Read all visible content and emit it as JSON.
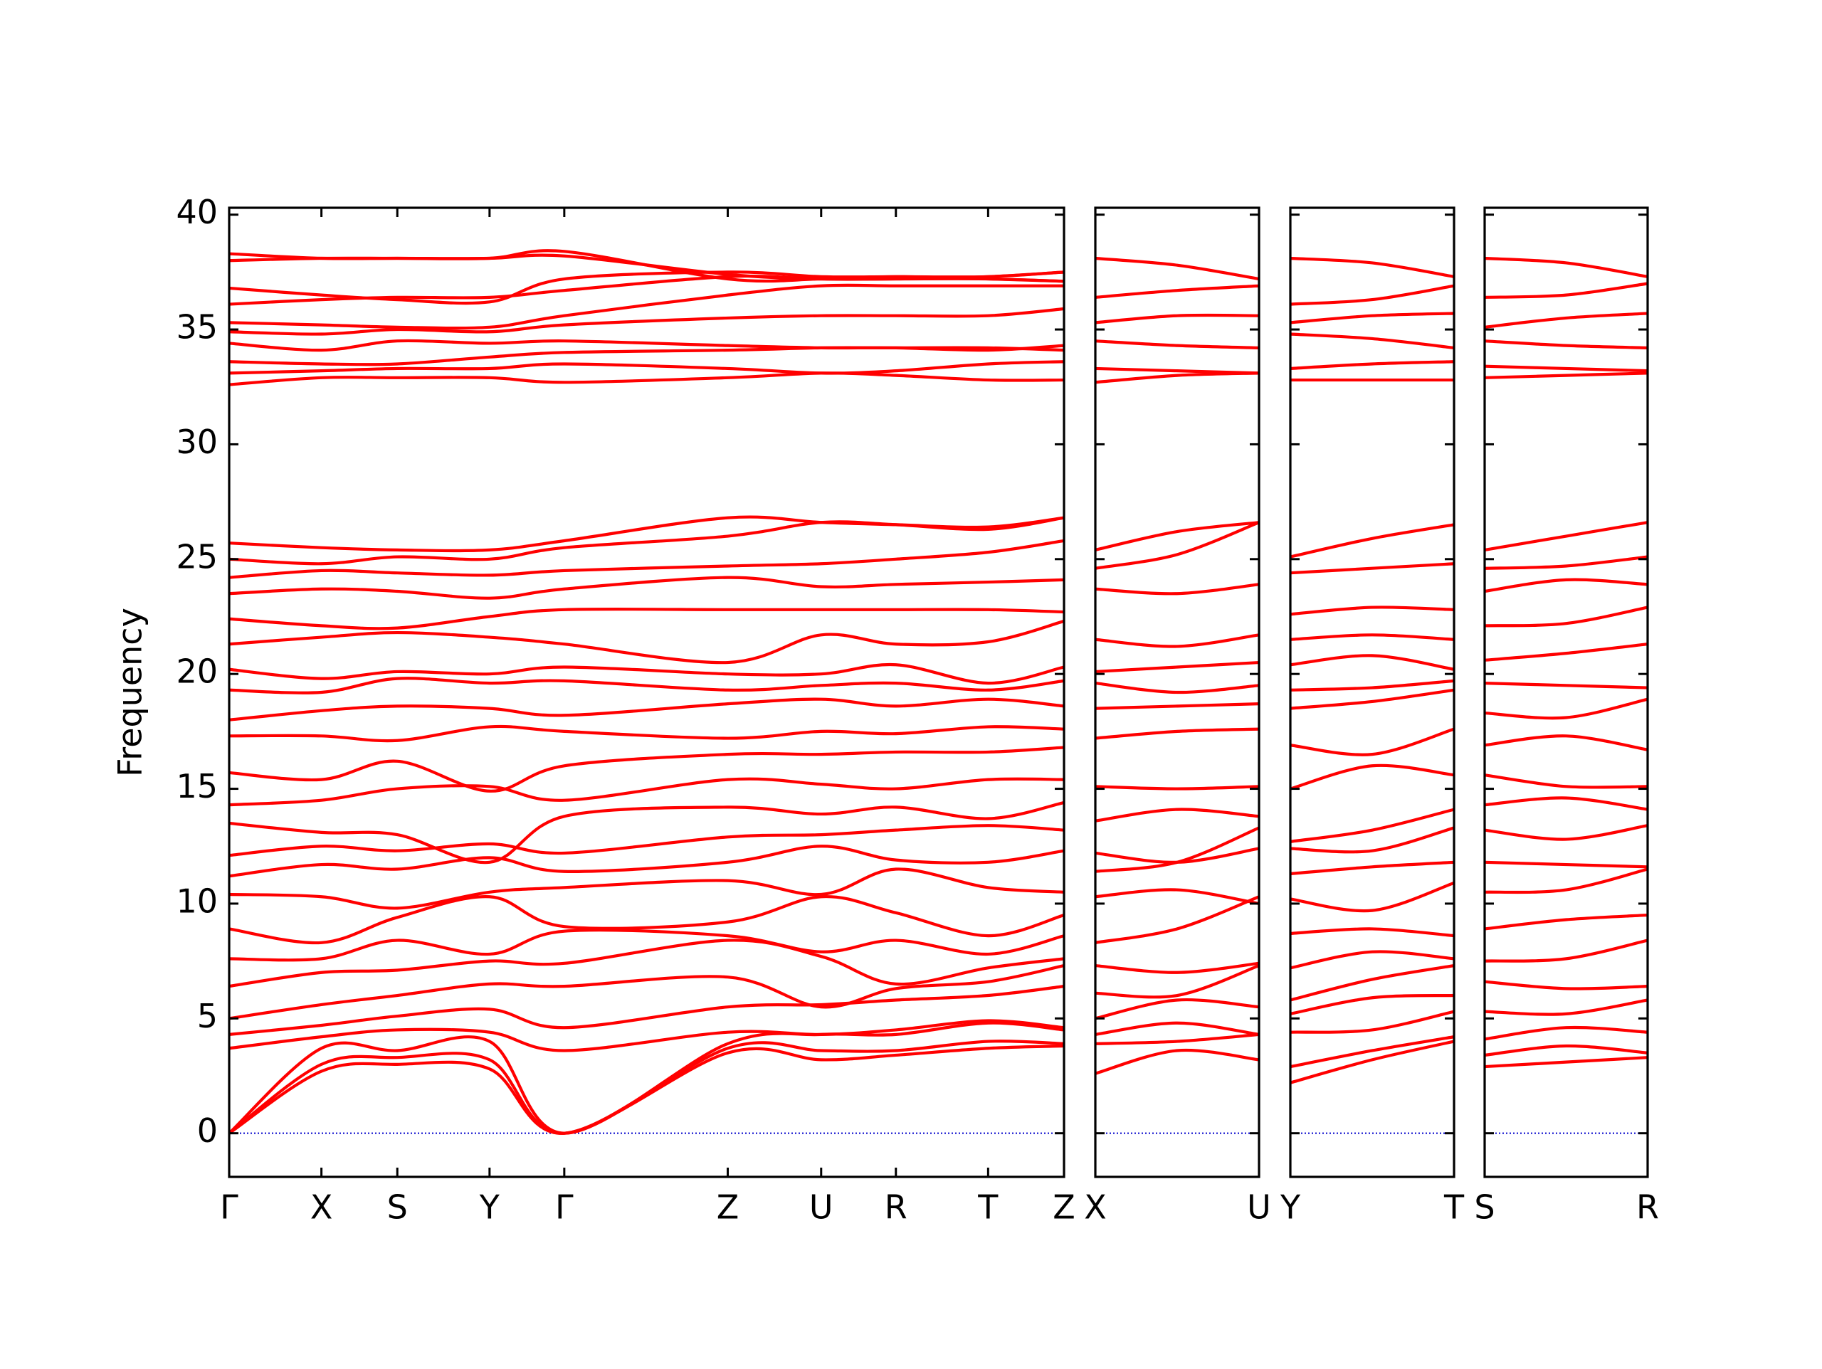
{
  "chart_data": [
    {
      "type": "line",
      "color": "#ff0000",
      "ylabel": "Frequency",
      "show_ytick_labels": true,
      "hline": {
        "value": 0,
        "color": "#0000cc"
      },
      "x": [
        0,
        0.79,
        1.44,
        2.23,
        2.87,
        4.27,
        5.07,
        5.71,
        6.5,
        7.15
      ],
      "xlim": [
        0,
        7.15
      ],
      "xticks": [
        {
          "value": 0,
          "label": "Γ"
        },
        {
          "value": 0.79,
          "label": "X"
        },
        {
          "value": 1.44,
          "label": "S"
        },
        {
          "value": 2.23,
          "label": "Y"
        },
        {
          "value": 2.87,
          "label": "Γ"
        },
        {
          "value": 4.27,
          "label": "Z"
        },
        {
          "value": 5.07,
          "label": "U"
        },
        {
          "value": 5.71,
          "label": "R"
        },
        {
          "value": 6.5,
          "label": "T"
        },
        {
          "value": 7.15,
          "label": "Z"
        }
      ],
      "ylim": [
        -1.9,
        40.3
      ],
      "yticks": [
        0,
        5,
        10,
        15,
        20,
        25,
        30,
        35,
        40
      ],
      "series": [
        {
          "values": [
            0,
            2.7,
            3.0,
            2.8,
            0,
            3.5,
            3.2,
            3.4,
            3.7,
            3.8
          ]
        },
        {
          "values": [
            0,
            3.0,
            3.3,
            3.2,
            0,
            3.7,
            3.6,
            3.6,
            4.0,
            3.9
          ]
        },
        {
          "values": [
            0,
            3.7,
            3.6,
            4.0,
            0,
            3.9,
            4.3,
            4.3,
            4.8,
            4.5
          ]
        },
        {
          "values": [
            3.7,
            4.2,
            4.5,
            4.4,
            3.6,
            4.4,
            4.3,
            4.5,
            4.9,
            4.6
          ]
        },
        {
          "values": [
            4.3,
            4.7,
            5.1,
            5.4,
            4.6,
            5.5,
            5.6,
            5.8,
            6.0,
            6.4
          ]
        },
        {
          "values": [
            5.0,
            5.6,
            6.0,
            6.5,
            6.4,
            6.8,
            5.5,
            6.3,
            6.6,
            7.3
          ]
        },
        {
          "values": [
            6.4,
            7.0,
            7.1,
            7.5,
            7.4,
            8.4,
            7.7,
            6.5,
            7.2,
            7.6
          ]
        },
        {
          "values": [
            7.6,
            7.6,
            8.4,
            7.8,
            8.8,
            8.6,
            7.9,
            8.4,
            7.8,
            8.6
          ]
        },
        {
          "values": [
            8.9,
            8.3,
            9.4,
            10.3,
            9.0,
            9.2,
            10.3,
            9.6,
            8.6,
            9.5
          ]
        },
        {
          "values": [
            10.4,
            10.3,
            9.8,
            10.5,
            10.7,
            11.0,
            10.4,
            11.5,
            10.7,
            10.5
          ]
        },
        {
          "values": [
            11.2,
            11.7,
            11.5,
            12.0,
            11.4,
            11.8,
            12.5,
            11.9,
            11.8,
            12.3
          ]
        },
        {
          "values": [
            12.1,
            12.5,
            12.3,
            12.6,
            12.2,
            12.9,
            13.0,
            13.2,
            13.4,
            13.2
          ]
        },
        {
          "values": [
            13.5,
            13.1,
            13.0,
            11.8,
            13.8,
            14.2,
            13.9,
            14.2,
            13.7,
            14.4
          ]
        },
        {
          "values": [
            14.3,
            14.5,
            15.0,
            15.1,
            14.5,
            15.4,
            15.2,
            15.0,
            15.4,
            15.4
          ]
        },
        {
          "values": [
            15.7,
            15.4,
            16.2,
            14.9,
            16.0,
            16.5,
            16.5,
            16.6,
            16.6,
            16.8
          ]
        },
        {
          "values": [
            17.3,
            17.3,
            17.1,
            17.7,
            17.5,
            17.2,
            17.5,
            17.4,
            17.7,
            17.6
          ]
        },
        {
          "values": [
            18.0,
            18.4,
            18.6,
            18.5,
            18.2,
            18.7,
            18.9,
            18.6,
            18.9,
            18.6
          ]
        },
        {
          "values": [
            19.3,
            19.2,
            19.8,
            19.6,
            19.7,
            19.3,
            19.5,
            19.6,
            19.3,
            19.7
          ]
        },
        {
          "values": [
            20.2,
            19.8,
            20.1,
            20.0,
            20.3,
            20.0,
            20.0,
            20.4,
            19.6,
            20.3
          ]
        },
        {
          "values": [
            21.3,
            21.6,
            21.8,
            21.6,
            21.3,
            20.5,
            21.7,
            21.3,
            21.4,
            22.3
          ]
        },
        {
          "values": [
            22.4,
            22.1,
            22.0,
            22.5,
            22.8,
            22.8,
            22.8,
            22.8,
            22.8,
            22.7
          ]
        },
        {
          "values": [
            23.5,
            23.7,
            23.6,
            23.3,
            23.7,
            24.2,
            23.8,
            23.9,
            24.0,
            24.1
          ]
        },
        {
          "values": [
            24.2,
            24.5,
            24.4,
            24.3,
            24.5,
            24.7,
            24.8,
            25.0,
            25.3,
            25.8
          ]
        },
        {
          "values": [
            25.0,
            24.8,
            25.1,
            25.0,
            25.5,
            26.0,
            26.6,
            26.5,
            26.3,
            26.8
          ]
        },
        {
          "values": [
            25.7,
            25.5,
            25.4,
            25.4,
            25.8,
            26.8,
            26.6,
            26.5,
            26.4,
            26.8
          ]
        },
        {
          "values": [
            32.6,
            32.9,
            32.9,
            32.9,
            32.7,
            32.9,
            33.1,
            33.0,
            32.8,
            32.8
          ]
        },
        {
          "values": [
            33.1,
            33.2,
            33.3,
            33.3,
            33.5,
            33.3,
            33.1,
            33.2,
            33.5,
            33.6
          ]
        },
        {
          "values": [
            33.6,
            33.5,
            33.5,
            33.8,
            34.0,
            34.1,
            34.2,
            34.2,
            34.2,
            34.1
          ]
        },
        {
          "values": [
            34.4,
            34.1,
            34.5,
            34.4,
            34.5,
            34.3,
            34.2,
            34.2,
            34.1,
            34.3
          ]
        },
        {
          "values": [
            34.9,
            34.8,
            35.0,
            34.9,
            35.2,
            35.5,
            35.6,
            35.6,
            35.6,
            35.9
          ]
        },
        {
          "values": [
            35.3,
            35.2,
            35.1,
            35.1,
            35.6,
            36.5,
            36.9,
            36.9,
            36.9,
            36.9
          ]
        },
        {
          "values": [
            36.1,
            36.3,
            36.4,
            36.4,
            36.7,
            37.3,
            37.2,
            37.2,
            37.3,
            37.5
          ]
        },
        {
          "values": [
            36.8,
            36.5,
            36.3,
            36.2,
            37.2,
            37.5,
            37.3,
            37.3,
            37.3,
            37.5
          ]
        },
        {
          "values": [
            38.0,
            38.1,
            38.1,
            38.1,
            38.2,
            37.4,
            37.2,
            37.2,
            37.2,
            37.1
          ]
        },
        {
          "values": [
            38.3,
            38.1,
            38.1,
            38.1,
            38.4,
            37.2,
            37.2,
            37.3,
            37.2,
            37.1
          ]
        }
      ]
    },
    {
      "type": "line",
      "color": "#ff0000",
      "show_ytick_labels": false,
      "hline": {
        "value": 0,
        "color": "#0000cc"
      },
      "x": [
        0,
        0.7,
        1.4
      ],
      "xlim": [
        0,
        1.4
      ],
      "xticks": [
        {
          "value": 0,
          "label": "X"
        },
        {
          "value": 1.4,
          "label": "U"
        }
      ],
      "ylim": [
        -1.9,
        40.3
      ],
      "yticks": [
        0,
        5,
        10,
        15,
        20,
        25,
        30,
        35,
        40
      ],
      "series": [
        {
          "values": [
            2.6,
            3.6,
            3.2
          ]
        },
        {
          "values": [
            3.9,
            4.0,
            4.3
          ]
        },
        {
          "values": [
            4.3,
            4.8,
            4.3
          ]
        },
        {
          "values": [
            5.0,
            5.8,
            5.5
          ]
        },
        {
          "values": [
            6.1,
            6.0,
            7.3
          ]
        },
        {
          "values": [
            7.3,
            7.0,
            7.4
          ]
        },
        {
          "values": [
            8.3,
            8.9,
            10.3
          ]
        },
        {
          "values": [
            10.3,
            10.6,
            10.0
          ]
        },
        {
          "values": [
            11.4,
            11.8,
            13.3
          ]
        },
        {
          "values": [
            12.2,
            11.8,
            12.4
          ]
        },
        {
          "values": [
            13.6,
            14.1,
            13.8
          ]
        },
        {
          "values": [
            15.1,
            15.0,
            15.1
          ]
        },
        {
          "values": [
            17.2,
            17.5,
            17.6
          ]
        },
        {
          "values": [
            18.5,
            18.6,
            18.7
          ]
        },
        {
          "values": [
            19.6,
            19.2,
            19.5
          ]
        },
        {
          "values": [
            20.1,
            20.3,
            20.5
          ]
        },
        {
          "values": [
            21.5,
            21.2,
            21.7
          ]
        },
        {
          "values": [
            23.7,
            23.5,
            23.9
          ]
        },
        {
          "values": [
            24.6,
            25.2,
            26.6
          ]
        },
        {
          "values": [
            25.4,
            26.2,
            26.6
          ]
        },
        {
          "values": [
            32.7,
            33.0,
            33.1
          ]
        },
        {
          "values": [
            33.3,
            33.2,
            33.1
          ]
        },
        {
          "values": [
            34.5,
            34.3,
            34.2
          ]
        },
        {
          "values": [
            35.3,
            35.6,
            35.6
          ]
        },
        {
          "values": [
            36.4,
            36.7,
            36.9
          ]
        },
        {
          "values": [
            38.1,
            37.8,
            37.2
          ]
        }
      ]
    },
    {
      "type": "line",
      "color": "#ff0000",
      "show_ytick_labels": false,
      "hline": {
        "value": 0,
        "color": "#0000cc"
      },
      "x": [
        0,
        0.7,
        1.4
      ],
      "xlim": [
        0,
        1.4
      ],
      "xticks": [
        {
          "value": 0,
          "label": "Y"
        },
        {
          "value": 1.4,
          "label": "T"
        }
      ],
      "ylim": [
        -1.9,
        40.3
      ],
      "yticks": [
        0,
        5,
        10,
        15,
        20,
        25,
        30,
        35,
        40
      ],
      "series": [
        {
          "values": [
            2.2,
            3.2,
            4.0
          ]
        },
        {
          "values": [
            2.9,
            3.6,
            4.2
          ]
        },
        {
          "values": [
            4.4,
            4.5,
            5.3
          ]
        },
        {
          "values": [
            5.2,
            5.9,
            6.0
          ]
        },
        {
          "values": [
            5.8,
            6.7,
            7.3
          ]
        },
        {
          "values": [
            7.2,
            7.9,
            7.6
          ]
        },
        {
          "values": [
            8.7,
            8.9,
            8.6
          ]
        },
        {
          "values": [
            10.2,
            9.7,
            10.9
          ]
        },
        {
          "values": [
            11.3,
            11.6,
            11.8
          ]
        },
        {
          "values": [
            12.4,
            12.3,
            13.3
          ]
        },
        {
          "values": [
            12.7,
            13.2,
            14.1
          ]
        },
        {
          "values": [
            15.0,
            16.0,
            15.6
          ]
        },
        {
          "values": [
            16.9,
            16.5,
            17.6
          ]
        },
        {
          "values": [
            18.5,
            18.8,
            19.3
          ]
        },
        {
          "values": [
            19.3,
            19.4,
            19.7
          ]
        },
        {
          "values": [
            20.4,
            20.8,
            20.2
          ]
        },
        {
          "values": [
            21.5,
            21.7,
            21.5
          ]
        },
        {
          "values": [
            22.6,
            22.9,
            22.8
          ]
        },
        {
          "values": [
            24.4,
            24.6,
            24.8
          ]
        },
        {
          "values": [
            25.1,
            25.9,
            26.5
          ]
        },
        {
          "values": [
            32.8,
            32.8,
            32.8
          ]
        },
        {
          "values": [
            33.3,
            33.5,
            33.6
          ]
        },
        {
          "values": [
            34.8,
            34.6,
            34.2
          ]
        },
        {
          "values": [
            35.3,
            35.6,
            35.7
          ]
        },
        {
          "values": [
            36.1,
            36.3,
            36.9
          ]
        },
        {
          "values": [
            38.1,
            37.9,
            37.3
          ]
        }
      ]
    },
    {
      "type": "line",
      "color": "#ff0000",
      "show_ytick_labels": false,
      "hline": {
        "value": 0,
        "color": "#0000cc"
      },
      "x": [
        0,
        0.7,
        1.4
      ],
      "xlim": [
        0,
        1.4
      ],
      "xticks": [
        {
          "value": 0,
          "label": "S"
        },
        {
          "value": 1.4,
          "label": "R"
        }
      ],
      "ylim": [
        -1.9,
        40.3
      ],
      "yticks": [
        0,
        5,
        10,
        15,
        20,
        25,
        30,
        35,
        40
      ],
      "series": [
        {
          "values": [
            2.9,
            3.1,
            3.3
          ]
        },
        {
          "values": [
            3.4,
            3.8,
            3.5
          ]
        },
        {
          "values": [
            4.1,
            4.6,
            4.4
          ]
        },
        {
          "values": [
            5.3,
            5.2,
            5.8
          ]
        },
        {
          "values": [
            6.6,
            6.3,
            6.4
          ]
        },
        {
          "values": [
            7.5,
            7.6,
            8.4
          ]
        },
        {
          "values": [
            8.9,
            9.3,
            9.5
          ]
        },
        {
          "values": [
            10.5,
            10.6,
            11.5
          ]
        },
        {
          "values": [
            11.8,
            11.7,
            11.6
          ]
        },
        {
          "values": [
            13.2,
            12.8,
            13.4
          ]
        },
        {
          "values": [
            14.3,
            14.6,
            14.1
          ]
        },
        {
          "values": [
            15.6,
            15.1,
            15.1
          ]
        },
        {
          "values": [
            16.9,
            17.3,
            16.7
          ]
        },
        {
          "values": [
            18.3,
            18.1,
            18.9
          ]
        },
        {
          "values": [
            19.6,
            19.5,
            19.4
          ]
        },
        {
          "values": [
            20.6,
            20.9,
            21.3
          ]
        },
        {
          "values": [
            22.1,
            22.2,
            22.9
          ]
        },
        {
          "values": [
            23.6,
            24.1,
            23.9
          ]
        },
        {
          "values": [
            24.6,
            24.7,
            25.1
          ]
        },
        {
          "values": [
            25.4,
            26.0,
            26.6
          ]
        },
        {
          "values": [
            32.9,
            33.0,
            33.1
          ]
        },
        {
          "values": [
            33.4,
            33.3,
            33.2
          ]
        },
        {
          "values": [
            34.5,
            34.3,
            34.2
          ]
        },
        {
          "values": [
            35.1,
            35.5,
            35.7
          ]
        },
        {
          "values": [
            36.4,
            36.5,
            37.0
          ]
        },
        {
          "values": [
            38.1,
            37.9,
            37.3
          ]
        }
      ]
    }
  ]
}
